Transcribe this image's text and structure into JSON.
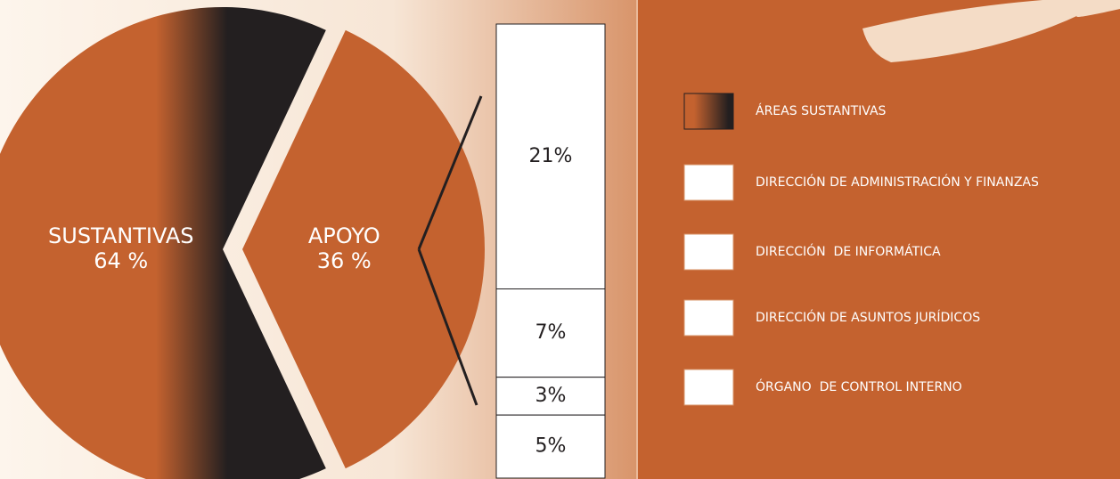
{
  "chart_data": {
    "type": "pie-of-bar",
    "pie": {
      "categories": [
        "SUSTANTIVAS",
        "APOYO"
      ],
      "values": [
        64,
        36
      ],
      "value_labels": [
        "64 %",
        "36 %"
      ],
      "colors": [
        "#c4622f",
        "#c4622f"
      ],
      "gradient_color": "#231f20"
    },
    "bar": {
      "categories": [
        "DIRECCIÓN DE ADMINISTRACIÓN Y FINANZAS",
        "DIRECCIÓN  DE INFORMÁTICA",
        "DIRECCIÓN DE ASUNTOS JURÍDICOS",
        "ÓRGANO  DE CONTROL INTERNO"
      ],
      "values": [
        21,
        7,
        3,
        5
      ],
      "value_labels": [
        "21%",
        "7%",
        "3%",
        "5%"
      ],
      "color": "#ffffff"
    },
    "legend": {
      "pie_entry": "ÁREAS SUSTANTIVAS"
    }
  }
}
